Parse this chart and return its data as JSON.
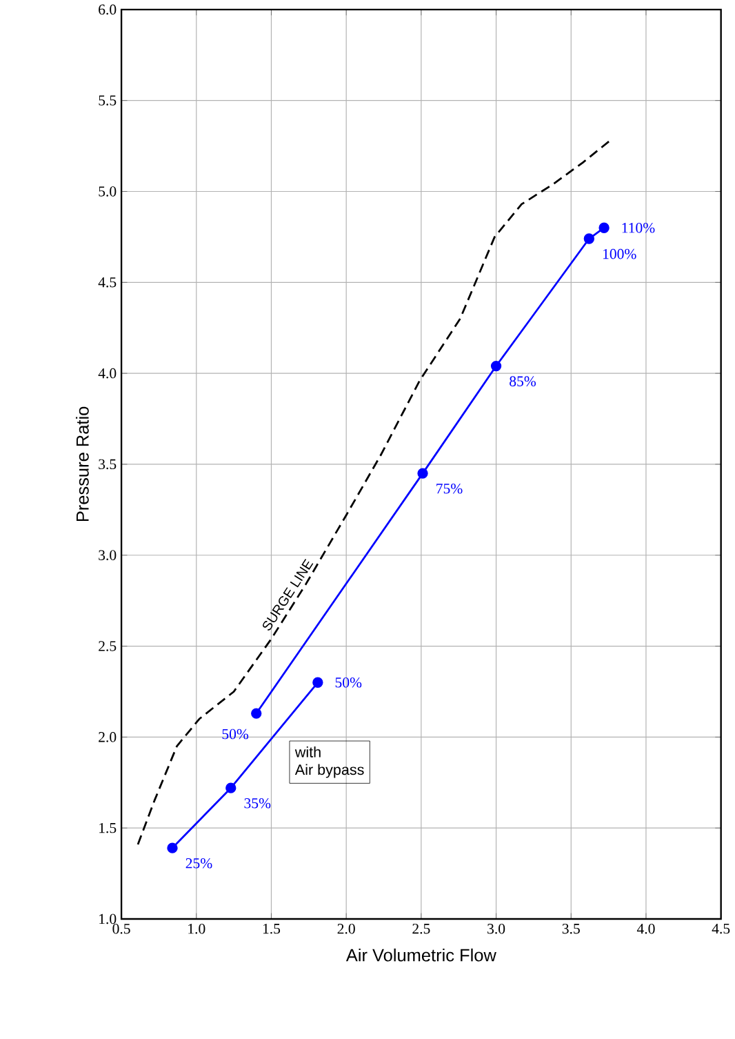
{
  "chart_data": {
    "type": "line",
    "xlabel": "Air Volumetric Flow",
    "ylabel": "Pressure Ratio",
    "xlim": [
      0.5,
      4.5
    ],
    "xticks": [
      {
        "value": 0.5,
        "label": "0.5"
      },
      {
        "value": 1.0,
        "label": "1.0"
      },
      {
        "value": 1.5,
        "label": "1.5"
      },
      {
        "value": 2.0,
        "label": "2.0"
      },
      {
        "value": 2.5,
        "label": "2.5"
      },
      {
        "value": 3.0,
        "label": "3.0"
      },
      {
        "value": 3.5,
        "label": "3.5"
      },
      {
        "value": 4.0,
        "label": "4.0"
      },
      {
        "value": 4.5,
        "label": "4.5"
      }
    ],
    "ylim": [
      1.0,
      6.0
    ],
    "yticks": [
      {
        "value": 1.0,
        "label": "1.0"
      },
      {
        "value": 1.5,
        "label": "1.5"
      },
      {
        "value": 2.0,
        "label": "2.0"
      },
      {
        "value": 2.5,
        "label": "2.5"
      },
      {
        "value": 3.0,
        "label": "3.0"
      },
      {
        "value": 3.5,
        "label": "3.5"
      },
      {
        "value": 4.0,
        "label": "4.0"
      },
      {
        "value": 4.5,
        "label": "4.5"
      },
      {
        "value": 5.0,
        "label": "5.0"
      },
      {
        "value": 5.5,
        "label": "5.5"
      },
      {
        "value": 6.0,
        "label": "6.0"
      }
    ],
    "grid": true,
    "legend": false,
    "series": [
      {
        "name": "SURGE LINE",
        "color": "#000000",
        "line_style": "dashed",
        "marker": "none",
        "x": [
          0.61,
          0.72,
          0.87,
          1.02,
          1.25,
          1.5,
          1.73,
          2.0,
          2.23,
          2.49,
          2.76,
          2.99,
          3.17,
          3.38,
          3.58,
          3.76
        ],
        "values": [
          1.41,
          1.65,
          1.95,
          2.1,
          2.25,
          2.54,
          2.84,
          3.22,
          3.55,
          3.96,
          4.3,
          4.75,
          4.93,
          5.04,
          5.16,
          5.28
        ]
      },
      {
        "color": "#0000ff",
        "line_style": "solid",
        "marker": "circle",
        "x": [
          1.4,
          2.51,
          3.0,
          3.62,
          3.72
        ],
        "values": [
          2.13,
          3.45,
          4.04,
          4.74,
          4.8
        ]
      },
      {
        "color": "#0000ff",
        "line_style": "solid",
        "marker": "circle",
        "x": [
          0.84,
          1.23,
          1.81
        ],
        "values": [
          1.39,
          1.72,
          2.3
        ]
      }
    ],
    "annotations": [
      {
        "text": "50%",
        "x": 1.4,
        "y": 2.13
      },
      {
        "text": "75%",
        "x": 2.51,
        "y": 3.45
      },
      {
        "text": "85%",
        "x": 3.0,
        "y": 4.04
      },
      {
        "text": "100%",
        "x": 3.62,
        "y": 4.74
      },
      {
        "text": "110%",
        "x": 3.72,
        "y": 4.8
      },
      {
        "text": "25%",
        "x": 0.84,
        "y": 1.39
      },
      {
        "text": "35%",
        "x": 1.23,
        "y": 1.72
      },
      {
        "text": "50%",
        "x": 1.81,
        "y": 2.3
      },
      "with",
      "Air bypass"
    ]
  }
}
